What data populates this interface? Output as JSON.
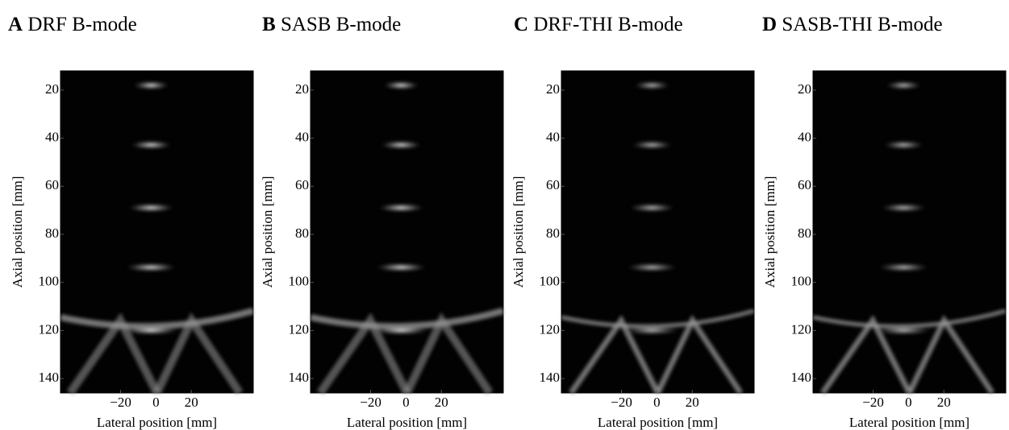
{
  "chart_data": [
    {
      "type": "image",
      "panel": "A",
      "title": "DRF B-mode",
      "x_label": "Lateral position [mm]",
      "y_label": "Axial position [mm]",
      "xlim": [
        -54,
        55
      ],
      "ylim": [
        12,
        146
      ],
      "y_reversed": true,
      "xticks": [
        {
          "value": -20,
          "label": "−20"
        },
        0,
        20
      ],
      "yticks": [
        20,
        40,
        60,
        80,
        100,
        120,
        140
      ]
    },
    {
      "type": "image",
      "panel": "B",
      "title": "SASB B-mode",
      "x_label": "Lateral position [mm]",
      "y_label": "Axial position [mm]",
      "xlim": [
        -54,
        55
      ],
      "ylim": [
        12,
        146
      ],
      "y_reversed": true,
      "xticks": [
        {
          "value": -20,
          "label": "−20"
        },
        0,
        20
      ],
      "yticks": [
        20,
        40,
        60,
        80,
        100,
        120,
        140
      ]
    },
    {
      "type": "image",
      "panel": "C",
      "title": "DRF-THI B-mode",
      "x_label": "Lateral position [mm]",
      "y_label": "Axial position [mm]",
      "xlim": [
        -54,
        55
      ],
      "ylim": [
        12,
        146
      ],
      "y_reversed": true,
      "xticks": [
        {
          "value": -20,
          "label": "−20"
        },
        0,
        20
      ],
      "yticks": [
        20,
        40,
        60,
        80,
        100,
        120,
        140
      ]
    },
    {
      "type": "image",
      "panel": "D",
      "title": "SASB-THI B-mode",
      "x_label": "Lateral position [mm]",
      "y_label": "Axial position [mm]",
      "xlim": [
        -54,
        55
      ],
      "ylim": [
        12,
        146
      ],
      "y_reversed": true,
      "xticks": [
        {
          "value": -20,
          "label": "−20"
        },
        0,
        20
      ],
      "yticks": [
        20,
        40,
        60,
        80,
        100,
        120,
        140
      ]
    }
  ]
}
